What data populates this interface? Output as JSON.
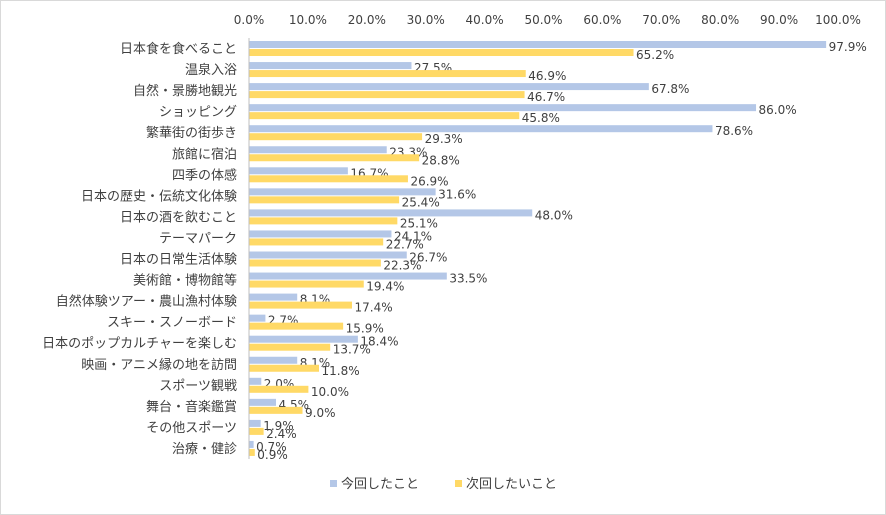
{
  "chart_data": {
    "type": "bar",
    "orientation": "horizontal",
    "xlim": [
      0,
      100
    ],
    "x_ticks": [
      "0.0%",
      "10.0%",
      "20.0%",
      "30.0%",
      "40.0%",
      "50.0%",
      "60.0%",
      "70.0%",
      "80.0%",
      "90.0%",
      "100.0%"
    ],
    "x_axis_position": "top",
    "grid": false,
    "legend_position": "bottom",
    "categories": [
      "日本食を食べること",
      "温泉入浴",
      "自然・景勝地観光",
      "ショッピング",
      "繁華街の街歩き",
      "旅館に宿泊",
      "四季の体感",
      "日本の歴史・伝統文化体験",
      "日本の酒を飲むこと",
      "テーマパーク",
      "日本の日常生活体験",
      "美術館・博物館等",
      "自然体験ツアー・農山漁村体験",
      "スキー・スノーボード",
      "日本のポップカルチャーを楽しむ",
      "映画・アニメ縁の地を訪問",
      "スポーツ観戦",
      "舞台・音楽鑑賞",
      "その他スポーツ",
      "治療・健診"
    ],
    "series": [
      {
        "name": "今回したこと",
        "color": "#b4c7e7",
        "values": [
          97.9,
          27.5,
          67.8,
          86.0,
          78.6,
          23.3,
          16.7,
          31.6,
          48.0,
          24.1,
          26.7,
          33.5,
          8.1,
          2.7,
          18.4,
          8.1,
          2.0,
          4.5,
          1.9,
          0.7
        ],
        "labels": [
          "97.9%",
          "27.5%",
          "67.8%",
          "86.0%",
          "78.6%",
          "23.3%",
          "16.7%",
          "31.6%",
          "48.0%",
          "24.1%",
          "26.7%",
          "33.5%",
          "8.1%",
          "2.7%",
          "18.4%",
          "8.1%",
          "2.0%",
          "4.5%",
          "1.9%",
          "0.7%"
        ]
      },
      {
        "name": "次回したいこと",
        "color": "#ffd966",
        "values": [
          65.2,
          46.9,
          46.7,
          45.8,
          29.3,
          28.8,
          26.9,
          25.4,
          25.1,
          22.7,
          22.3,
          19.4,
          17.4,
          15.9,
          13.7,
          11.8,
          10.0,
          9.0,
          2.4,
          0.9
        ],
        "labels": [
          "65.2%",
          "46.9%",
          "46.7%",
          "45.8%",
          "29.3%",
          "28.8%",
          "26.9%",
          "25.4%",
          "25.1%",
          "22.7%",
          "22.3%",
          "19.4%",
          "17.4%",
          "15.9%",
          "13.7%",
          "11.8%",
          "10.0%",
          "9.0%",
          "2.4%",
          "0.9%"
        ]
      }
    ]
  }
}
